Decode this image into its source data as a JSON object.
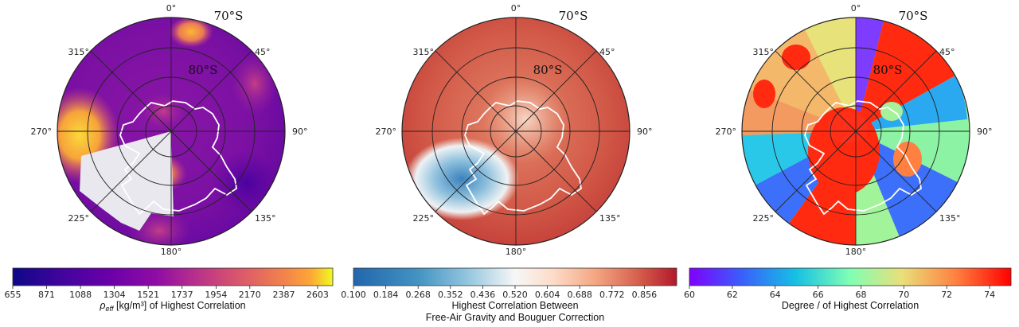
{
  "chart_data": [
    {
      "type": "heatmap",
      "projection": "south-polar-stereographic",
      "longitude_labels": [
        "0°",
        "45°",
        "90°",
        "135°",
        "180°",
        "225°",
        "270°",
        "315°"
      ],
      "latitude_labels": [
        "70°S",
        "80°S"
      ],
      "colorbar": {
        "colormap": "plasma",
        "min": 655,
        "max": 2700,
        "ticks": [
          "655",
          "871",
          "1088",
          "1304",
          "1521",
          "1737",
          "1954",
          "2170",
          "2387",
          "2603"
        ],
        "label_prefix": "ρ",
        "label_subscript": "eff",
        "label_suffix": " [kg/m³] of Highest Correlation"
      }
    },
    {
      "type": "heatmap",
      "projection": "south-polar-stereographic",
      "longitude_labels": [
        "0°",
        "45°",
        "90°",
        "135°",
        "180°",
        "225°",
        "270°",
        "315°"
      ],
      "latitude_labels": [
        "70°S",
        "80°S"
      ],
      "colorbar": {
        "colormap": "RdBu_r",
        "min": 0.1,
        "max": 0.94,
        "ticks": [
          "0.100",
          "0.184",
          "0.268",
          "0.352",
          "0.436",
          "0.520",
          "0.604",
          "0.688",
          "0.772",
          "0.856"
        ],
        "label_line1": "Highest Correlation Between",
        "label_line2": "Free-Air Gravity and Bouguer Correction"
      }
    },
    {
      "type": "heatmap",
      "projection": "south-polar-stereographic",
      "longitude_labels": [
        "0°",
        "45°",
        "90°",
        "135°",
        "180°",
        "225°",
        "270°",
        "315°"
      ],
      "latitude_labels": [
        "70°S",
        "80°S"
      ],
      "colorbar": {
        "colormap": "rainbow",
        "min": 60,
        "max": 75,
        "ticks": [
          "60",
          "62",
          "64",
          "66",
          "68",
          "70",
          "72",
          "74"
        ],
        "label": "Degree / of Highest Correlation"
      }
    }
  ]
}
